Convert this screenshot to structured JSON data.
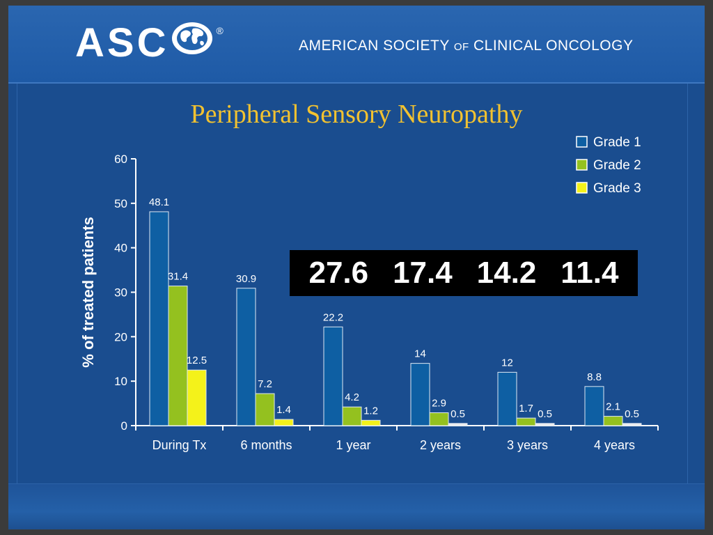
{
  "header": {
    "brand": "ASC",
    "registered": "®",
    "society_part1": "AMERICAN SOCIETY ",
    "society_of": "OF",
    "society_part2": " CLINICAL ONCOLOGY"
  },
  "overlay_values": [
    "27.6",
    "17.4",
    "14.2",
    "11.4"
  ],
  "colors": {
    "background": "#1a4d8f",
    "title": "#f2c230",
    "grade1": "#0e5fa3",
    "grade2": "#94c11f",
    "grade3": "#f4f21a"
  },
  "chart_data": {
    "type": "bar",
    "title": "Peripheral Sensory Neuropathy",
    "ylabel": "% of treated patients",
    "xlabel": "",
    "ylim": [
      0,
      60
    ],
    "yticks": [
      0,
      10,
      20,
      30,
      40,
      50,
      60
    ],
    "categories": [
      "During Tx",
      "6 months",
      "1 year",
      "2 years",
      "3 years",
      "4 years"
    ],
    "series": [
      {
        "name": "Grade 1",
        "color": "#0e5fa3",
        "values": [
          48.1,
          30.9,
          22.2,
          14,
          12,
          8.8
        ],
        "labels": [
          "48.1",
          "30.9",
          "22.2",
          "14",
          "12",
          "8.8"
        ]
      },
      {
        "name": "Grade 2",
        "color": "#94c11f",
        "values": [
          31.4,
          7.2,
          4.2,
          2.9,
          1.7,
          2.1
        ],
        "labels": [
          "31.4",
          "7.2",
          "4.2",
          "2.9",
          "1.7",
          "2.1"
        ]
      },
      {
        "name": "Grade 3",
        "color": "#f4f21a",
        "values": [
          12.5,
          1.4,
          1.2,
          0.5,
          0.5,
          0.5
        ],
        "labels": [
          "12.5",
          "1.4",
          "1.2",
          "0.5",
          "0.5",
          "0.5"
        ]
      }
    ],
    "legend_position": "top-right",
    "grid": false
  }
}
